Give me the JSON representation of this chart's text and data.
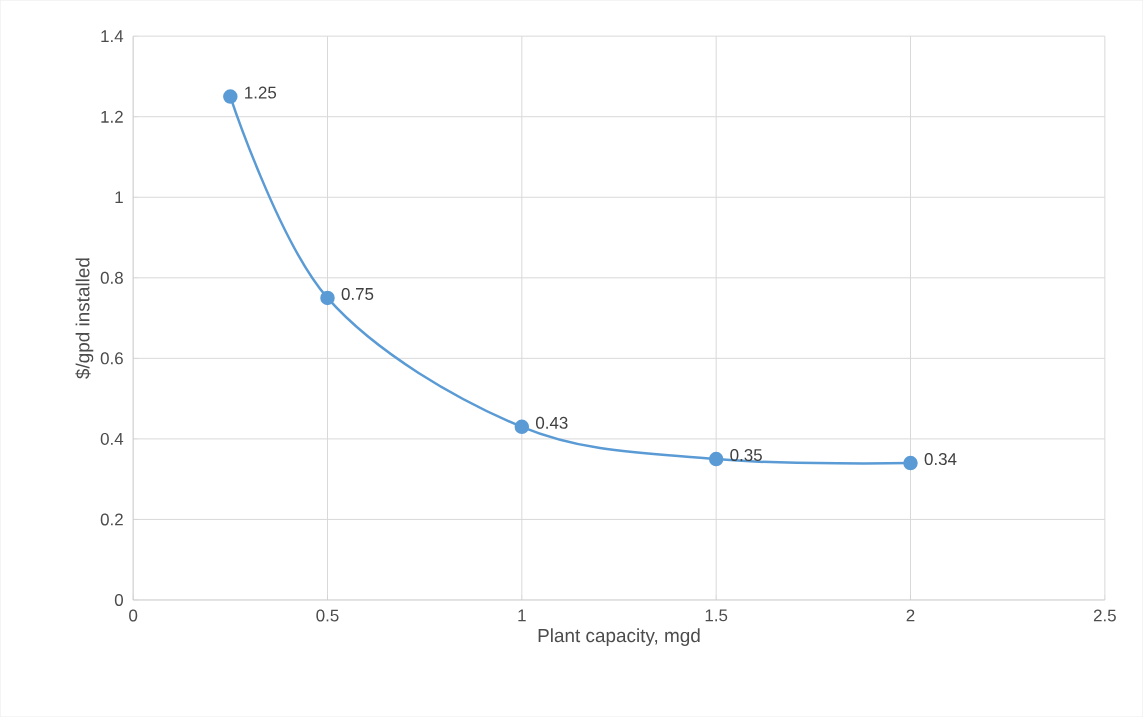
{
  "chart_data": {
    "type": "line",
    "xlabel": "Plant capacity, mgd",
    "ylabel": "$/gpd installed",
    "x": [
      0.25,
      0.5,
      1,
      1.5,
      2
    ],
    "series": [
      {
        "color": "#5b9bd5",
        "values": [
          1.25,
          0.75,
          0.43,
          0.35,
          0.34
        ]
      }
    ],
    "xlim": [
      0,
      2.5
    ],
    "xticks": [
      0,
      0.5,
      1,
      1.5,
      2,
      2.5
    ],
    "ylim": [
      0,
      1.4
    ],
    "yticks": [
      0,
      0.2,
      0.4,
      0.6,
      0.8,
      1,
      1.2,
      1.4
    ],
    "grid": true,
    "marker": "circle",
    "line_style": "solid",
    "data_labels": true
  }
}
